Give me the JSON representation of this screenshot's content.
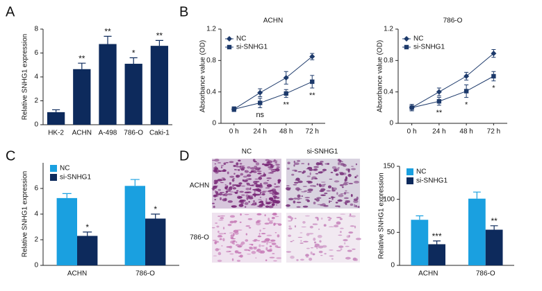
{
  "panel_labels": [
    "A",
    "B",
    "C",
    "D"
  ],
  "micrograph": {
    "columns": [
      "NC",
      "si-SNHG1"
    ],
    "rows": [
      "ACHN",
      "786-O"
    ]
  },
  "chart_data": [
    {
      "type": "bar",
      "ylabel": "Relative SNHG1 expression",
      "categories": [
        "HK-2",
        "ACHN",
        "A-498",
        "786-O",
        "Caki-1"
      ],
      "values": [
        1.05,
        4.65,
        6.75,
        5.1,
        6.6
      ],
      "errors": [
        0.2,
        0.5,
        0.65,
        0.5,
        0.45
      ],
      "annotations": [
        null,
        "**",
        "**",
        "*",
        "**"
      ],
      "color": "#0d2a5c",
      "ylim": [
        0,
        8
      ],
      "yticks": [
        0,
        2,
        4,
        6,
        8
      ]
    },
    {
      "type": "line",
      "title": "ACHN",
      "ylabel": "Absorbance value (OD)",
      "categories": [
        "0 h",
        "24 h",
        "48 h",
        "72 h"
      ],
      "series": [
        {
          "name": "NC",
          "color": "#1d3a6b",
          "marker": "diamond",
          "values": [
            0.18,
            0.39,
            0.58,
            0.85
          ],
          "errors": [
            0.03,
            0.05,
            0.08,
            0.04
          ]
        },
        {
          "name": "si-SNHG1",
          "color": "#1d3a6b",
          "marker": "square",
          "values": [
            0.18,
            0.26,
            0.38,
            0.53
          ],
          "errors": [
            0.03,
            0.06,
            0.05,
            0.08
          ],
          "annotations": [
            null,
            "ns",
            "**",
            "**"
          ]
        }
      ],
      "ylim": [
        0,
        1.2
      ],
      "yticks": [
        0,
        0.4,
        0.8,
        1.2
      ]
    },
    {
      "type": "line",
      "title": "786-O",
      "ylabel": "Absorbance value (OD)",
      "categories": [
        "0 h",
        "24 h",
        "48 h",
        "72 h"
      ],
      "series": [
        {
          "name": "NC",
          "color": "#1d3a6b",
          "marker": "diamond",
          "values": [
            0.2,
            0.4,
            0.6,
            0.89
          ],
          "errors": [
            0.04,
            0.05,
            0.05,
            0.05
          ]
        },
        {
          "name": "si-SNHG1",
          "color": "#1d3a6b",
          "marker": "square",
          "values": [
            0.2,
            0.28,
            0.41,
            0.6
          ],
          "errors": [
            0.04,
            0.05,
            0.08,
            0.06
          ],
          "annotations": [
            null,
            "**",
            "*",
            "*"
          ]
        }
      ],
      "ylim": [
        0,
        1.2
      ],
      "yticks": [
        0,
        0.4,
        0.8,
        1.2
      ]
    },
    {
      "type": "bar",
      "ylabel": "Relative SNHG1 expression",
      "categories": [
        "ACHN",
        "786-O"
      ],
      "series": [
        {
          "name": "NC",
          "color": "#1aa0e0",
          "values": [
            5.25,
            6.2
          ],
          "errors": [
            0.35,
            0.5
          ]
        },
        {
          "name": "si-SNHG1",
          "color": "#0d2a5c",
          "values": [
            2.3,
            3.65
          ],
          "errors": [
            0.3,
            0.35
          ],
          "annotations": [
            "*",
            "*"
          ]
        }
      ],
      "ylim": [
        0,
        8
      ],
      "yticks": [
        0,
        2,
        4,
        6
      ]
    },
    {
      "type": "bar",
      "ylabel": "Relative SNHG1 expression",
      "categories": [
        "ACHN",
        "786-O"
      ],
      "series": [
        {
          "name": "NC",
          "color": "#1aa0e0",
          "values": [
            69,
            101
          ],
          "errors": [
            6,
            10
          ]
        },
        {
          "name": "si-SNHG1",
          "color": "#0d2a5c",
          "values": [
            32,
            54
          ],
          "errors": [
            5,
            6
          ],
          "annotations": [
            "***",
            "**"
          ]
        }
      ],
      "ylim": [
        0,
        150
      ],
      "yticks": [
        0,
        50,
        100,
        150
      ]
    }
  ]
}
